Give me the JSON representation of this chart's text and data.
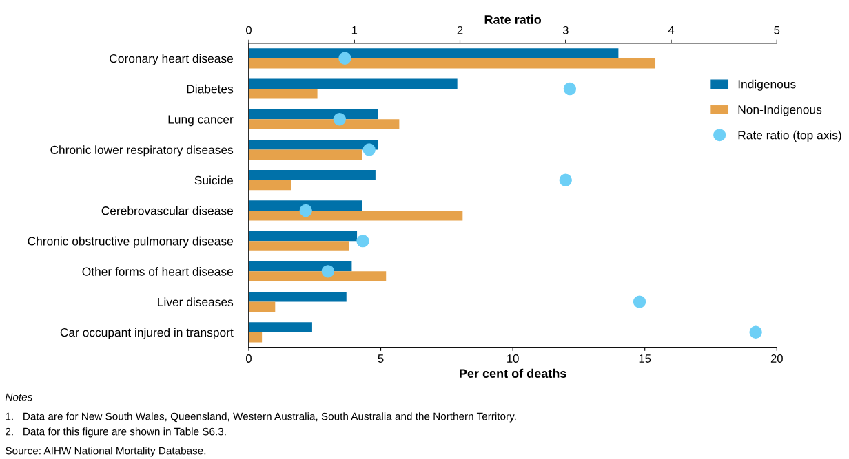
{
  "chart_data": {
    "type": "bar",
    "orientation": "horizontal",
    "categories": [
      "Coronary heart disease",
      "Diabetes",
      "Lung cancer",
      "Chronic lower respiratory diseases",
      "Suicide",
      "Cerebrovascular disease",
      "Chronic obstructive pulmonary disease",
      "Other forms of heart disease",
      "Liver diseases",
      "Car occupant injured in transport"
    ],
    "series": [
      {
        "name": "Indigenous",
        "color": "#0071a9",
        "values": [
          14.0,
          7.9,
          4.9,
          4.9,
          4.8,
          4.3,
          4.1,
          3.9,
          3.7,
          2.4
        ]
      },
      {
        "name": "Non-Indigenous",
        "color": "#e6a24b",
        "values": [
          15.4,
          2.6,
          5.7,
          4.3,
          1.6,
          8.1,
          3.8,
          5.2,
          1.0,
          0.5
        ]
      },
      {
        "name": "Rate ratio (top axis)",
        "type": "scatter",
        "axis": "x2",
        "marker": "circle",
        "color": "#6dcff6",
        "values": [
          0.91,
          3.04,
          0.86,
          1.14,
          3.0,
          0.54,
          1.08,
          0.75,
          3.7,
          4.8
        ]
      }
    ],
    "xlim": [
      0,
      20
    ],
    "xticks": [
      0,
      5,
      10,
      15,
      20
    ],
    "xlabel": "Per cent of deaths",
    "x2lim": [
      0,
      5
    ],
    "x2ticks": [
      0,
      1,
      2,
      3,
      4,
      5
    ],
    "x2label": "Rate ratio",
    "legend": "right",
    "grid": false,
    "annotations": [
      "Notes",
      "1.   Data are for New South Wales, Queensland, Western Australia, South Australia and the Northern Territory.",
      "2.   Data for this figure are shown in Table S6.3.",
      "Source: AIHW National Mortality Database."
    ]
  }
}
